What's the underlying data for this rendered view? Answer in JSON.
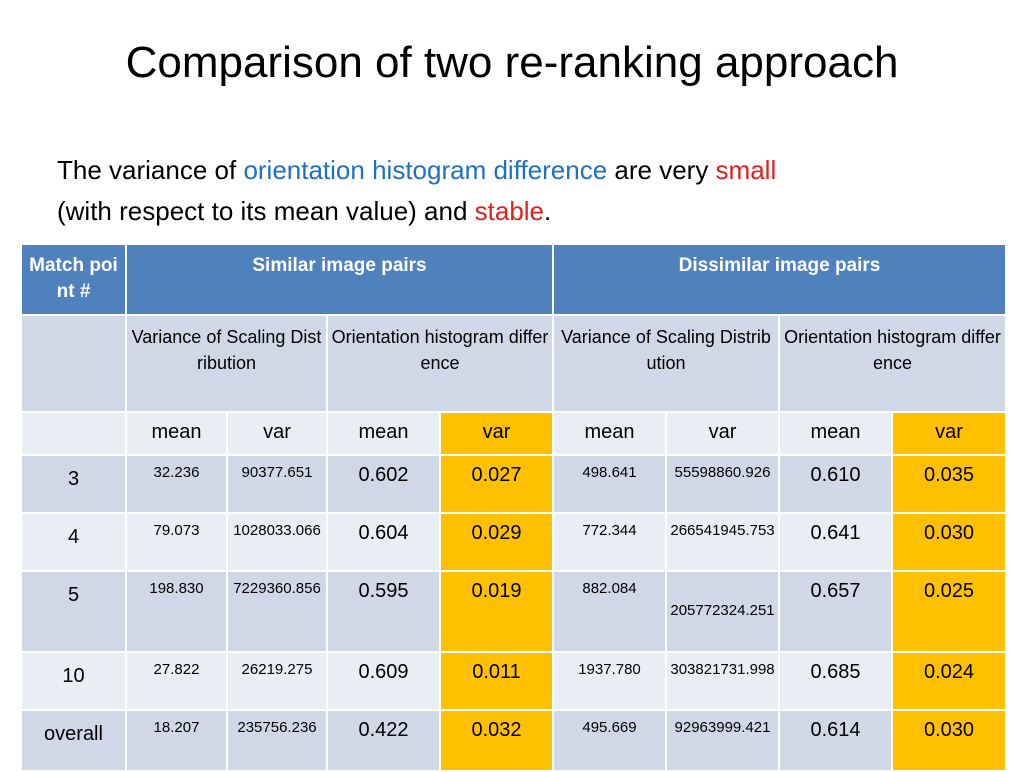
{
  "slide": {
    "title": "Comparison of two re-ranking approach",
    "subtitle": {
      "t1": "The variance of ",
      "t2": "orientation histogram difference",
      "t3": " are very ",
      "t4": "small",
      "t5": "(with respect to its mean value) and ",
      "t6": "stable",
      "t7": "."
    }
  },
  "table": {
    "header": {
      "match_point": "Match point #",
      "similar": "Similar image pairs",
      "dissimilar": "Dissimilar image pairs"
    },
    "subheader": {
      "scaling": "Variance of Scaling Distribution",
      "orientation": "Orientation histogram difference"
    },
    "stat": {
      "mean": "mean",
      "var": "var"
    },
    "rows": [
      {
        "label": "3",
        "s_mean": "32.236",
        "s_var": "90377.651",
        "o_mean": "0.602",
        "o_var": "0.027",
        "ds_mean": "498.641",
        "ds_var": "55598860.926",
        "do_mean": "0.610",
        "do_var": "0.035"
      },
      {
        "label": "4",
        "s_mean": "79.073",
        "s_var": "1028033.066",
        "o_mean": "0.604",
        "o_var": "0.029",
        "ds_mean": "772.344",
        "ds_var": "266541945.753",
        "do_mean": "0.641",
        "do_var": "0.030"
      },
      {
        "label": "5",
        "s_mean": "198.830",
        "s_var": "7229360.856",
        "o_mean": "0.595",
        "o_var": "0.019",
        "ds_mean": "882.084",
        "ds_var": "205772324.251",
        "do_mean": "0.657",
        "do_var": "0.025"
      },
      {
        "label": "10",
        "s_mean": "27.822",
        "s_var": "26219.275",
        "o_mean": "0.609",
        "o_var": "0.011",
        "ds_mean": "1937.780",
        "ds_var": "303821731.998",
        "do_mean": "0.685",
        "do_var": "0.024"
      },
      {
        "label": "overall",
        "s_mean": "18.207",
        "s_var": "235756.236",
        "o_mean": "0.422",
        "o_var": "0.032",
        "ds_mean": "495.669",
        "ds_var": "92963999.421",
        "do_mean": "0.614",
        "do_var": "0.030"
      }
    ]
  },
  "colors": {
    "header_blue": "#4f81bd",
    "highlight": "#ffc000",
    "keyword_blue": "#1f6fc5",
    "keyword_red": "#e0201b"
  }
}
